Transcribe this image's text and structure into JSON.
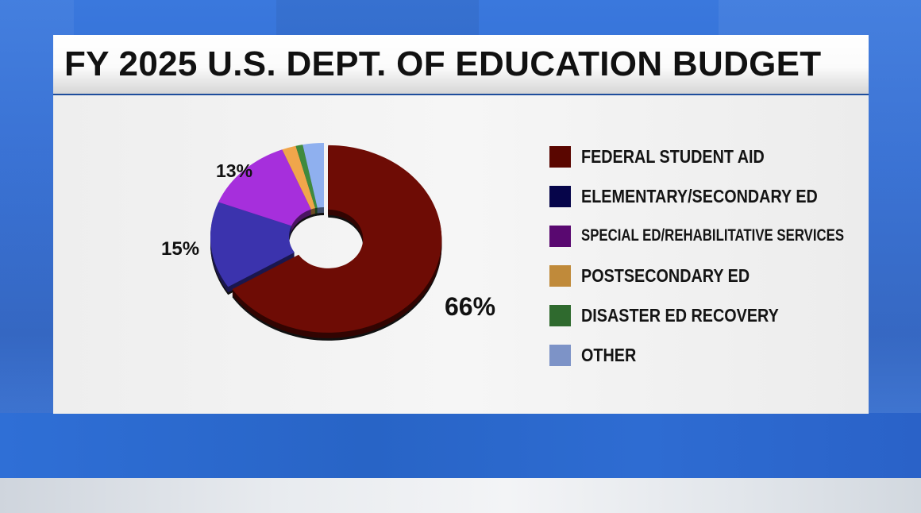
{
  "title": "FY 2025 U.S. DEPT. OF EDUCATION BUDGET",
  "chart_data": {
    "type": "pie",
    "style": "donut, 3d, largest slice exploded",
    "title": "FY 2025 U.S. DEPT. OF EDUCATION BUDGET",
    "series": [
      {
        "name": "FEDERAL STUDENT AID",
        "value": 66,
        "label": "66%",
        "color": "#5a0600"
      },
      {
        "name": "ELEMENTARY/SECONDARY ED",
        "value": 15,
        "label": "15%",
        "color": "#06054a"
      },
      {
        "name": "SPECIAL ED/REHABILITATIVE SERVICES",
        "value": 13,
        "label": "13%",
        "color": "#590870"
      },
      {
        "name": "POSTSECONDARY ED",
        "value": 2,
        "label": "",
        "color": "#c08a3a"
      },
      {
        "name": "DISASTER ED RECOVERY",
        "value": 1,
        "label": "",
        "color": "#2f6a2e"
      },
      {
        "name": "OTHER",
        "value": 3,
        "label": "",
        "color": "#7d93c7"
      }
    ],
    "slice_colors": [
      "#6e0c05",
      "#3b33ad",
      "#a62fdc",
      "#f0a64b",
      "#3f8a3d",
      "#8fb0ef"
    ],
    "legend_position": "right"
  }
}
